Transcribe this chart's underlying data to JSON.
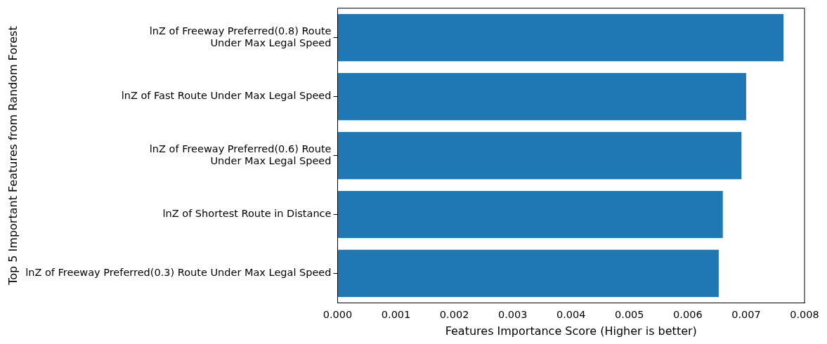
{
  "chart_data": {
    "type": "bar",
    "orientation": "horizontal",
    "categories": [
      "lnZ of Freeway Preferred(0.8) Route\nUnder Max Legal Speed",
      "lnZ of Fast Route Under Max Legal Speed",
      "lnZ of Freeway Preferred(0.6) Route\nUnder Max Legal Speed",
      "lnZ of Shortest Route in Distance",
      "lnZ of Freeway Preferred(0.3) Route Under Max Legal Speed"
    ],
    "values": [
      0.00764,
      0.007,
      0.00692,
      0.0066,
      0.00653
    ],
    "color": "#1f77b4",
    "xlabel": "Features Importance Score (Higher is better)",
    "ylabel": "Top 5 Important Features from Random Forest",
    "xlim": [
      0,
      0.008
    ],
    "xticks": [
      {
        "value": 0,
        "label": "0.000"
      },
      {
        "value": 0.001,
        "label": "0.001"
      },
      {
        "value": 0.002,
        "label": "0.002"
      },
      {
        "value": 0.003,
        "label": "0.003"
      },
      {
        "value": 0.004,
        "label": "0.004"
      },
      {
        "value": 0.005,
        "label": "0.005"
      },
      {
        "value": 0.006,
        "label": "0.006"
      },
      {
        "value": 0.007,
        "label": "0.007"
      },
      {
        "value": 0.008,
        "label": "0.008"
      }
    ],
    "grid": false,
    "legend": false
  }
}
